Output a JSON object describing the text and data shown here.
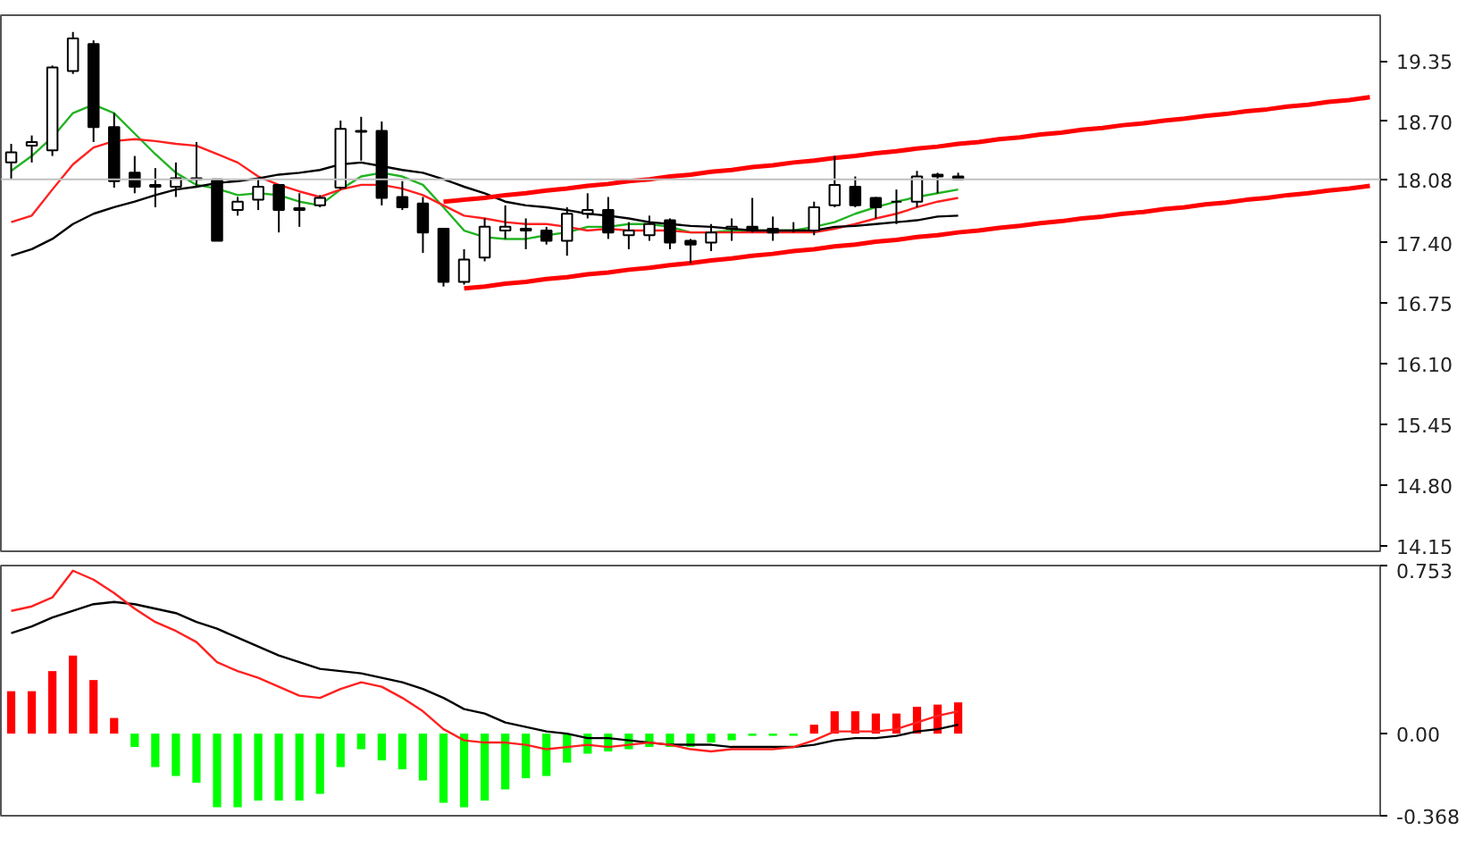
{
  "chart_data": [
    {
      "type": "candlestick",
      "categories": [
        null,
        null,
        null,
        null,
        null,
        null,
        null,
        null,
        null,
        null,
        null,
        null,
        null,
        null,
        null,
        null,
        null,
        null,
        null,
        null,
        null,
        null,
        null,
        null,
        null,
        null,
        null,
        null,
        null,
        null,
        null,
        null,
        null,
        null,
        null,
        null,
        null,
        null,
        null,
        null,
        null,
        null,
        null,
        null,
        null,
        null,
        null,
        null,
        null,
        null,
        null,
        null,
        null,
        null,
        null,
        null,
        null,
        null,
        null,
        null,
        null,
        null,
        null,
        null,
        null,
        null,
        null
      ],
      "ohlc": [
        [
          18.26,
          18.46,
          18.08,
          18.37
        ],
        [
          18.44,
          18.55,
          18.26,
          18.48
        ],
        [
          18.39,
          19.3,
          18.33,
          19.28
        ],
        [
          19.24,
          19.66,
          19.21,
          19.59
        ],
        [
          19.53,
          19.57,
          18.48,
          18.64
        ],
        [
          18.64,
          18.79,
          17.99,
          18.06
        ],
        [
          18.15,
          18.33,
          17.93,
          18.0
        ],
        [
          18.02,
          18.2,
          17.78,
          18.0
        ],
        [
          18.0,
          18.26,
          17.89,
          18.09
        ],
        [
          18.08,
          18.48,
          17.99,
          18.09
        ],
        [
          18.08,
          18.08,
          17.42,
          17.42
        ],
        [
          17.75,
          17.89,
          17.69,
          17.84
        ],
        [
          17.86,
          18.09,
          17.75,
          18.0
        ],
        [
          18.02,
          18.02,
          17.51,
          17.75
        ],
        [
          17.75,
          17.93,
          17.57,
          17.77
        ],
        [
          17.8,
          17.91,
          17.78,
          17.88
        ],
        [
          17.99,
          18.71,
          17.97,
          18.62
        ],
        [
          18.59,
          18.75,
          18.28,
          18.6
        ],
        [
          18.6,
          18.7,
          17.8,
          17.88
        ],
        [
          17.89,
          18.06,
          17.75,
          17.78
        ],
        [
          17.82,
          17.89,
          17.29,
          17.51
        ],
        [
          17.55,
          17.55,
          16.93,
          16.98
        ],
        [
          16.98,
          17.33,
          16.95,
          17.22
        ],
        [
          17.24,
          17.66,
          17.2,
          17.57
        ],
        [
          17.53,
          17.8,
          17.44,
          17.57
        ],
        [
          17.55,
          17.66,
          17.33,
          17.53
        ],
        [
          17.53,
          17.57,
          17.38,
          17.42
        ],
        [
          17.42,
          17.78,
          17.26,
          17.71
        ],
        [
          17.71,
          17.93,
          17.66,
          17.75
        ],
        [
          17.75,
          17.89,
          17.44,
          17.51
        ],
        [
          17.48,
          17.62,
          17.33,
          17.53
        ],
        [
          17.48,
          17.69,
          17.42,
          17.6
        ],
        [
          17.64,
          17.66,
          17.33,
          17.4
        ],
        [
          17.42,
          17.44,
          17.18,
          17.38
        ],
        [
          17.4,
          17.6,
          17.31,
          17.51
        ],
        [
          17.55,
          17.66,
          17.42,
          17.57
        ],
        [
          17.57,
          17.88,
          17.51,
          17.53
        ],
        [
          17.55,
          17.68,
          17.42,
          17.51
        ],
        [
          17.53,
          17.62,
          17.51,
          17.53
        ],
        [
          17.53,
          17.84,
          17.48,
          17.78
        ],
        [
          17.8,
          18.33,
          17.78,
          18.02
        ],
        [
          18.0,
          18.11,
          17.78,
          17.8
        ],
        [
          17.88,
          17.89,
          17.66,
          17.78
        ],
        [
          17.84,
          17.97,
          17.6,
          17.84
        ],
        [
          17.84,
          18.17,
          17.78,
          18.11
        ],
        [
          18.11,
          18.15,
          17.93,
          18.13
        ],
        [
          18.11,
          18.15,
          18.08,
          18.08
        ],
        null,
        null,
        null,
        null,
        null,
        null,
        null,
        null,
        null,
        null,
        null,
        null,
        null,
        null,
        null,
        null,
        null,
        null,
        null,
        null
      ],
      "series": [
        {
          "type": "line",
          "color": "#22b322",
          "values": [
            18.17,
            18.33,
            18.53,
            18.79,
            18.88,
            18.79,
            18.57,
            18.35,
            18.15,
            18.02,
            17.98,
            17.91,
            17.93,
            17.91,
            17.84,
            17.8,
            17.97,
            18.11,
            18.15,
            18.11,
            18.02,
            17.78,
            17.53,
            17.46,
            17.44,
            17.44,
            17.48,
            17.51,
            17.57,
            17.57,
            17.6,
            17.6,
            17.57,
            17.51,
            17.51,
            17.53,
            17.53,
            17.53,
            17.53,
            17.57,
            17.62,
            17.71,
            17.78,
            17.84,
            17.89,
            17.93,
            17.97,
            null,
            null,
            null,
            null,
            null,
            null,
            null,
            null,
            null,
            null,
            null,
            null,
            null,
            null,
            null,
            null,
            null,
            null,
            null,
            null
          ]
        },
        {
          "type": "line",
          "color": "#ff2020",
          "values": [
            17.62,
            17.69,
            17.97,
            18.24,
            18.42,
            18.49,
            18.51,
            18.49,
            18.46,
            18.44,
            18.35,
            18.26,
            18.11,
            18.02,
            17.95,
            17.89,
            17.97,
            18.02,
            18.02,
            17.98,
            17.91,
            17.8,
            17.69,
            17.66,
            17.62,
            17.6,
            17.6,
            17.57,
            17.53,
            17.55,
            17.53,
            17.53,
            17.53,
            17.51,
            17.51,
            17.51,
            17.51,
            17.51,
            17.51,
            17.51,
            17.55,
            17.6,
            17.66,
            17.71,
            17.78,
            17.84,
            17.88,
            null,
            null,
            null,
            null,
            null,
            null,
            null,
            null,
            null,
            null,
            null,
            null,
            null,
            null,
            null,
            null,
            null,
            null,
            null,
            null
          ]
        },
        {
          "type": "line",
          "color": "#000000",
          "values": [
            17.26,
            17.33,
            17.44,
            17.6,
            17.71,
            17.78,
            17.84,
            17.91,
            17.97,
            18.0,
            18.04,
            18.06,
            18.09,
            18.13,
            18.15,
            18.18,
            18.24,
            18.26,
            18.22,
            18.18,
            18.15,
            18.08,
            18.0,
            17.93,
            17.84,
            17.8,
            17.78,
            17.75,
            17.71,
            17.69,
            17.66,
            17.62,
            17.6,
            17.58,
            17.57,
            17.55,
            17.53,
            17.53,
            17.53,
            17.53,
            17.57,
            17.58,
            17.6,
            17.62,
            17.64,
            17.68,
            17.69,
            null,
            null,
            null,
            null,
            null,
            null,
            null,
            null,
            null,
            null,
            null,
            null,
            null,
            null,
            null,
            null,
            null,
            null,
            null,
            null
          ]
        },
        {
          "type": "line",
          "color": "#ff0000",
          "values": [
            null,
            null,
            null,
            null,
            null,
            null,
            null,
            null,
            null,
            null,
            null,
            null,
            null,
            null,
            null,
            null,
            null,
            null,
            null,
            null,
            null,
            17.84,
            17.86,
            17.88,
            17.91,
            17.93,
            17.96,
            17.98,
            18.01,
            18.03,
            18.06,
            18.08,
            18.11,
            18.13,
            18.16,
            18.18,
            18.21,
            18.23,
            18.26,
            18.28,
            18.31,
            18.33,
            18.36,
            18.38,
            18.41,
            18.43,
            18.46,
            18.48,
            18.51,
            18.53,
            18.56,
            18.58,
            18.61,
            18.63,
            18.66,
            18.68,
            18.71,
            18.73,
            18.76,
            18.78,
            18.81,
            18.83,
            18.86,
            18.88,
            18.91,
            18.93,
            18.96
          ]
        },
        {
          "type": "line",
          "color": "#ff0000",
          "values": [
            null,
            null,
            null,
            null,
            null,
            null,
            null,
            null,
            null,
            null,
            null,
            null,
            null,
            null,
            null,
            null,
            null,
            null,
            null,
            null,
            null,
            null,
            16.91,
            16.93,
            16.96,
            16.98,
            17.01,
            17.03,
            17.06,
            17.08,
            17.11,
            17.13,
            17.16,
            17.18,
            17.21,
            17.23,
            17.26,
            17.28,
            17.31,
            17.33,
            17.36,
            17.38,
            17.41,
            17.43,
            17.46,
            17.48,
            17.51,
            17.53,
            17.56,
            17.58,
            17.61,
            17.63,
            17.66,
            17.68,
            17.71,
            17.73,
            17.76,
            17.78,
            17.81,
            17.83,
            17.86,
            17.88,
            17.91,
            17.93,
            17.96,
            17.98,
            18.01
          ]
        }
      ],
      "ref_lines": [
        {
          "axis": "y",
          "value": 18.08,
          "label": "18.08",
          "color": "#c0c0c0"
        }
      ],
      "ylim": [
        14.09,
        19.84
      ],
      "yticks": [
        {
          "value": 19.35,
          "label": "19.35"
        },
        {
          "value": 18.7,
          "label": "18.70"
        },
        {
          "value": 17.4,
          "label": "17.40"
        },
        {
          "value": 16.75,
          "label": "16.75"
        },
        {
          "value": 16.1,
          "label": "16.10"
        },
        {
          "value": 15.45,
          "label": "15.45"
        },
        {
          "value": 14.8,
          "label": "14.80"
        },
        {
          "value": 14.15,
          "label": "14.15"
        }
      ],
      "tick_labels": "y"
    },
    {
      "type": "bar",
      "categories": [
        null,
        null,
        null,
        null,
        null,
        null,
        null,
        null,
        null,
        null,
        null,
        null,
        null,
        null,
        null,
        null,
        null,
        null,
        null,
        null,
        null,
        null,
        null,
        null,
        null,
        null,
        null,
        null,
        null,
        null,
        null,
        null,
        null,
        null,
        null,
        null,
        null,
        null,
        null,
        null,
        null,
        null,
        null,
        null,
        null,
        null,
        null,
        null,
        null,
        null,
        null,
        null,
        null,
        null,
        null,
        null,
        null,
        null,
        null,
        null,
        null,
        null,
        null,
        null,
        null,
        null,
        null
      ],
      "series": [
        {
          "type": "bar",
          "colors": [
            "#ff0000",
            "#ff0000",
            "#ff0000",
            "#ff0000",
            "#ff0000",
            "#ff0000",
            "#00ff00",
            "#00ff00",
            "#00ff00",
            "#00ff00",
            "#00ff00",
            "#00ff00",
            "#00ff00",
            "#00ff00",
            "#00ff00",
            "#00ff00",
            "#00ff00",
            "#00ff00",
            "#00ff00",
            "#00ff00",
            "#00ff00",
            "#00ff00",
            "#00ff00",
            "#00ff00",
            "#00ff00",
            "#00ff00",
            "#00ff00",
            "#00ff00",
            "#00ff00",
            "#00ff00",
            "#00ff00",
            "#00ff00",
            "#00ff00",
            "#00ff00",
            "#00ff00",
            "#00ff00",
            "#00ff00",
            "#00ff00",
            "#00ff00",
            "#ff0000",
            "#ff0000",
            "#ff0000",
            "#ff0000",
            "#ff0000",
            "#ff0000",
            "#ff0000",
            "#ff0000",
            null,
            null,
            null,
            null,
            null,
            null,
            null,
            null,
            null,
            null,
            null,
            null,
            null,
            null,
            null,
            null,
            null,
            null,
            null,
            null
          ],
          "values": [
            0.19,
            0.19,
            0.28,
            0.35,
            0.24,
            0.07,
            -0.06,
            -0.15,
            -0.19,
            -0.22,
            -0.33,
            -0.33,
            -0.3,
            -0.3,
            -0.3,
            -0.27,
            -0.15,
            -0.07,
            -0.12,
            -0.16,
            -0.21,
            -0.31,
            -0.33,
            -0.3,
            -0.25,
            -0.2,
            -0.19,
            -0.13,
            -0.09,
            -0.08,
            -0.07,
            -0.06,
            -0.06,
            -0.06,
            -0.04,
            -0.03,
            -0.01,
            -0.01,
            -0.01,
            0.04,
            0.1,
            0.1,
            0.09,
            0.09,
            0.12,
            0.13,
            0.14,
            null,
            null,
            null,
            null,
            null,
            null,
            null,
            null,
            null,
            null,
            null,
            null,
            null,
            null,
            null,
            null,
            null,
            null,
            null,
            null
          ]
        },
        {
          "type": "line",
          "color": "#000000",
          "values": [
            0.45,
            0.48,
            0.52,
            0.55,
            0.58,
            0.59,
            0.58,
            0.56,
            0.54,
            0.5,
            0.47,
            0.43,
            0.39,
            0.35,
            0.32,
            0.29,
            0.28,
            0.27,
            0.25,
            0.23,
            0.2,
            0.16,
            0.11,
            0.09,
            0.05,
            0.03,
            0.01,
            0.0,
            -0.02,
            -0.02,
            -0.03,
            -0.04,
            -0.05,
            -0.05,
            -0.05,
            -0.06,
            -0.06,
            -0.06,
            -0.06,
            -0.05,
            -0.03,
            -0.02,
            -0.02,
            -0.01,
            0.01,
            0.02,
            0.04,
            null,
            null,
            null,
            null,
            null,
            null,
            null,
            null,
            null,
            null,
            null,
            null,
            null,
            null,
            null,
            null,
            null,
            null,
            null,
            null
          ]
        },
        {
          "type": "line",
          "color": "#ff2020",
          "values": [
            0.55,
            0.57,
            0.61,
            0.73,
            0.69,
            0.63,
            0.56,
            0.5,
            0.46,
            0.41,
            0.32,
            0.28,
            0.25,
            0.21,
            0.17,
            0.16,
            0.2,
            0.23,
            0.21,
            0.16,
            0.1,
            0.02,
            -0.03,
            -0.04,
            -0.04,
            -0.05,
            -0.07,
            -0.06,
            -0.05,
            -0.06,
            -0.05,
            -0.04,
            -0.05,
            -0.07,
            -0.08,
            -0.07,
            -0.07,
            -0.07,
            -0.06,
            -0.03,
            0.01,
            0.01,
            0.01,
            0.02,
            0.05,
            0.08,
            0.1,
            null,
            null,
            null,
            null,
            null,
            null,
            null,
            null,
            null,
            null,
            null,
            null,
            null,
            null,
            null,
            null,
            null,
            null,
            null,
            null
          ]
        }
      ],
      "ylim": [
        -0.368,
        0.753
      ],
      "yticks": [
        0.753,
        {
          "value": 0,
          "label": "0.00"
        },
        -0.368
      ],
      "tick_labels": "y"
    }
  ]
}
